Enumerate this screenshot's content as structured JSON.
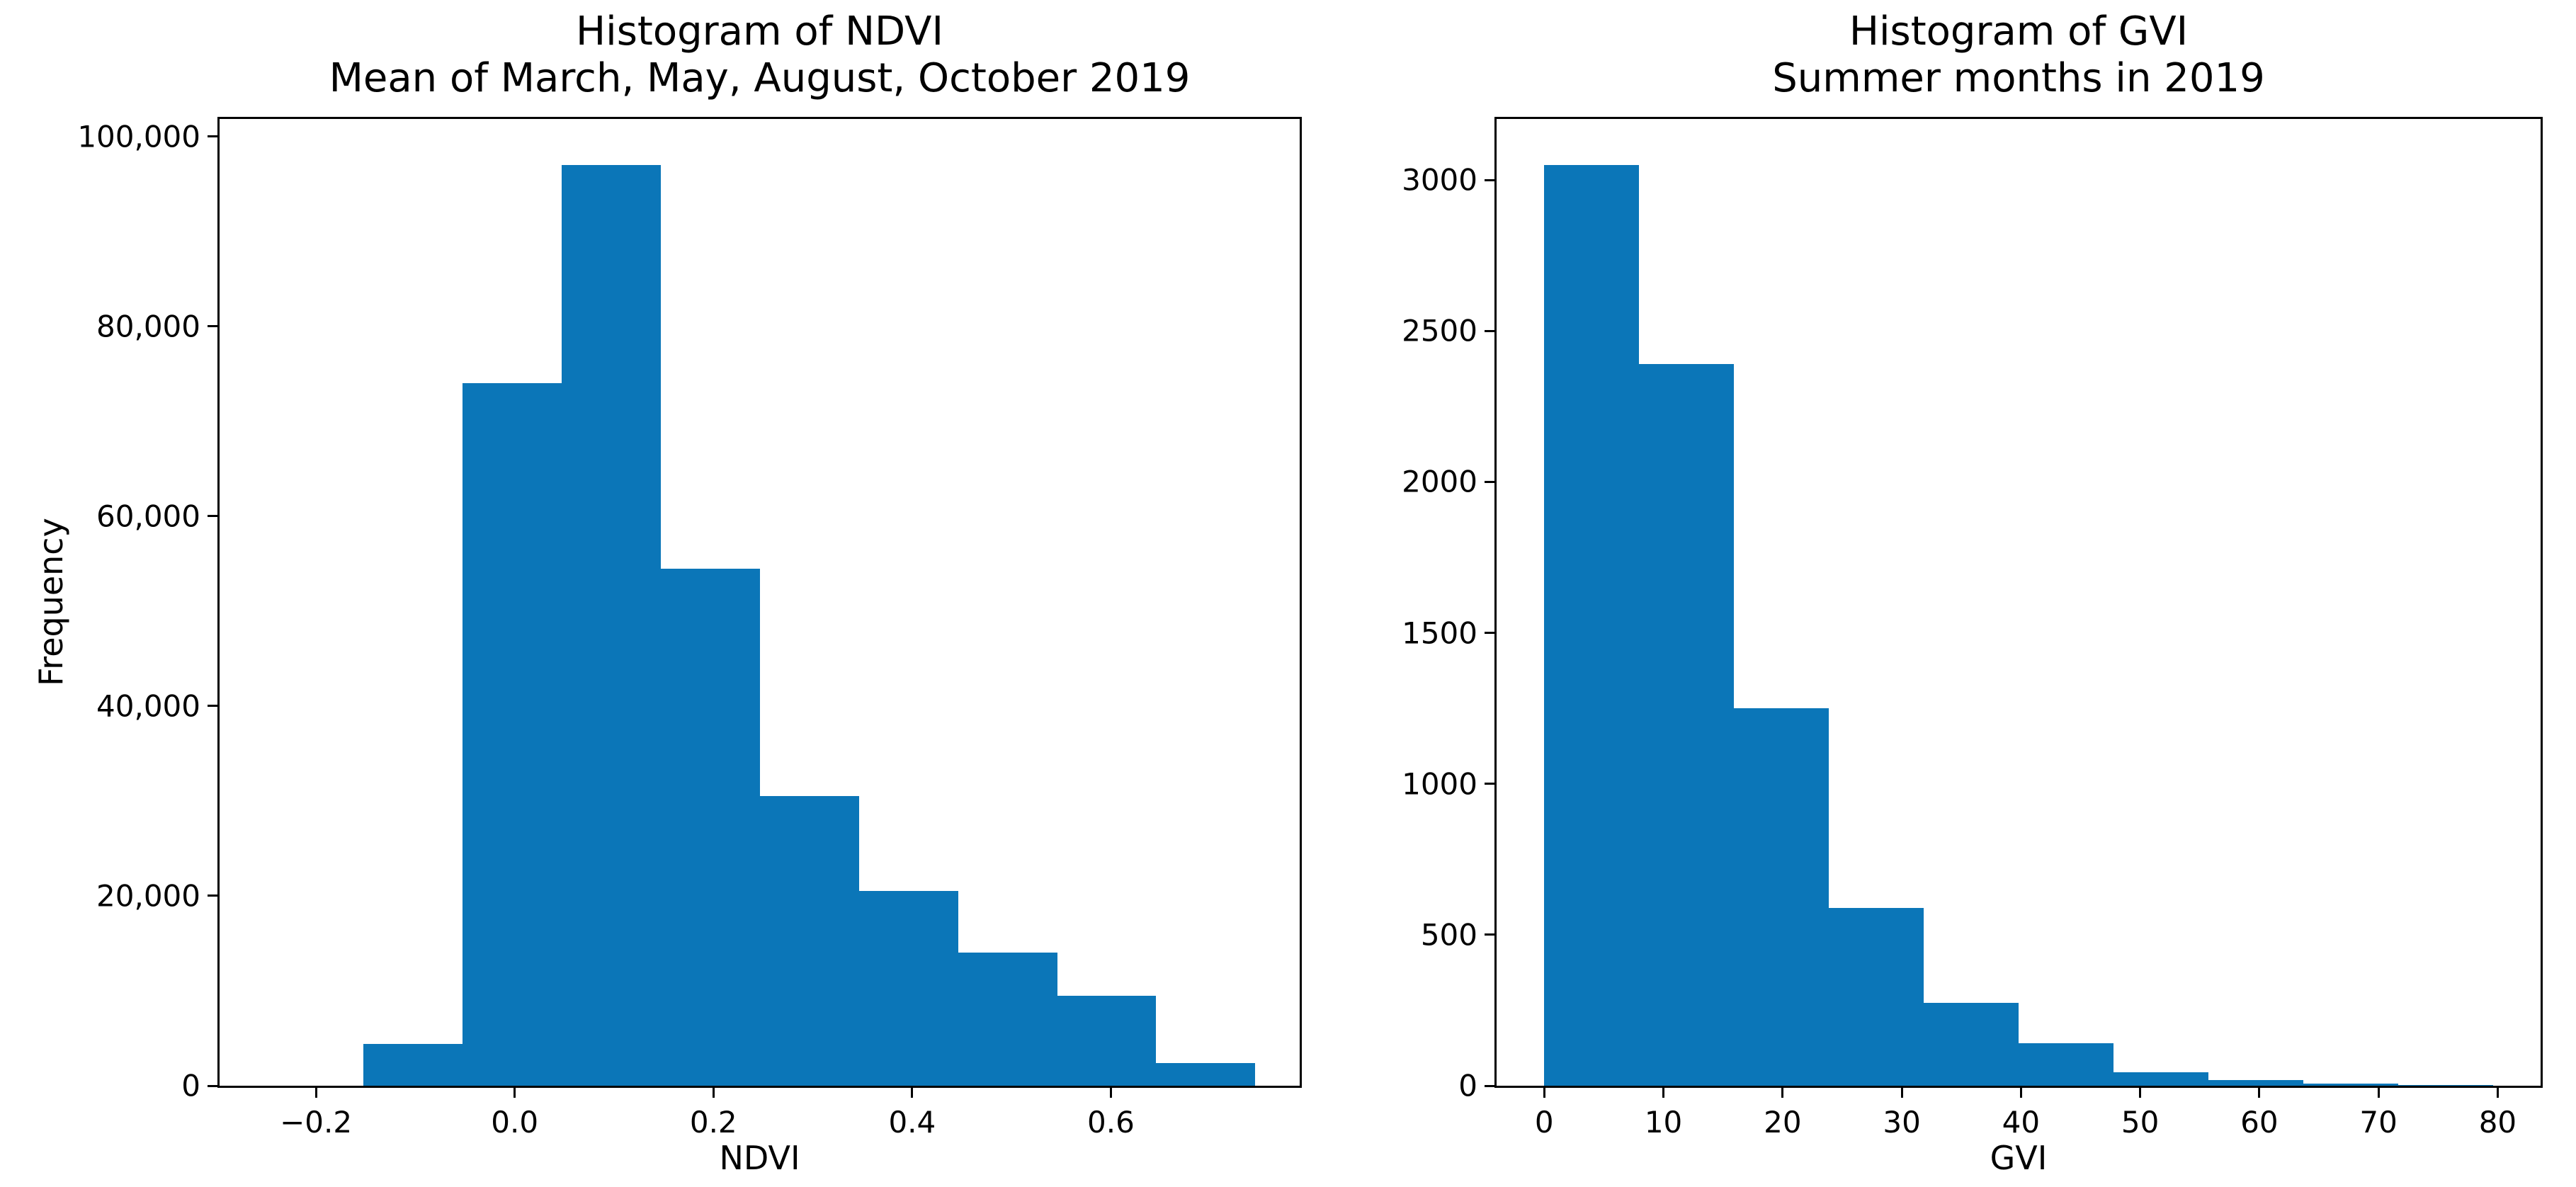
{
  "figure": {
    "background_color": "#ffffff",
    "bar_color": "#0b76b8",
    "axis_color": "#000000",
    "text_color": "#000000"
  },
  "chart_data": [
    {
      "type": "bar",
      "title": "Histogram of NDVI",
      "subtitle": "Mean of March, May, August, October 2019",
      "xlabel": "NDVI",
      "ylabel": "Frequency",
      "grid": false,
      "legend": null,
      "bins": {
        "start": -0.152,
        "width": 0.0997
      },
      "values": [
        4400,
        74000,
        97000,
        54500,
        30500,
        20500,
        14000,
        9500,
        2400
      ],
      "xlim": [
        -0.297,
        0.79
      ],
      "ylim": [
        0,
        101850
      ],
      "xticks": [
        -0.2,
        0.0,
        0.2,
        0.4,
        0.6
      ],
      "xtick_labels": [
        "−0.2",
        "0.0",
        "0.2",
        "0.4",
        "0.6"
      ],
      "yticks": [
        0,
        20000,
        40000,
        60000,
        80000,
        100000
      ],
      "ytick_labels": [
        "0",
        "20,000",
        "40,000",
        "60,000",
        "80,000",
        "100,000"
      ]
    },
    {
      "type": "bar",
      "title": "Histogram of GVI",
      "subtitle": "Summer months in 2019",
      "xlabel": "GVI",
      "ylabel": "",
      "grid": false,
      "legend": null,
      "bins": {
        "start": 0,
        "width": 7.96
      },
      "values": [
        3050,
        2390,
        1250,
        590,
        275,
        140,
        45,
        18,
        8,
        3
      ],
      "xlim": [
        -4.0,
        83.6
      ],
      "ylim": [
        0,
        3202
      ],
      "xticks": [
        0,
        10,
        20,
        30,
        40,
        50,
        60,
        70,
        80
      ],
      "xtick_labels": [
        "0",
        "10",
        "20",
        "30",
        "40",
        "50",
        "60",
        "70",
        "80"
      ],
      "yticks": [
        0,
        500,
        1000,
        1500,
        2000,
        2500,
        3000
      ],
      "ytick_labels": [
        "0",
        "500",
        "1000",
        "1500",
        "2000",
        "2500",
        "3000"
      ]
    }
  ]
}
